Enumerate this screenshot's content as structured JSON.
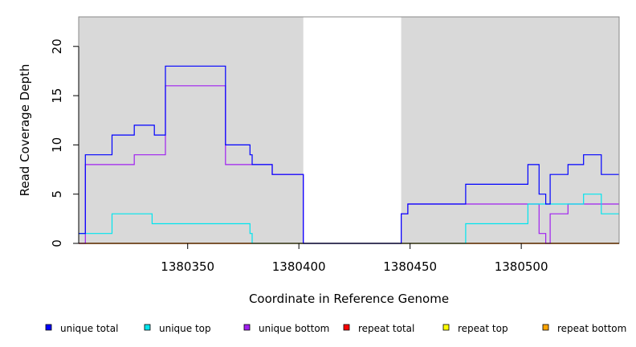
{
  "chart_data": {
    "type": "line",
    "xlabel": "Coordinate in Reference Genome",
    "ylabel": "Read Coverage Depth",
    "xlim": [
      1380301,
      1380544
    ],
    "ylim": [
      0,
      23
    ],
    "x_ticks": [
      1380350,
      1380400,
      1380450,
      1380500
    ],
    "y_ticks": [
      0,
      5,
      10,
      15,
      20
    ],
    "background_color": "#d9d9d9",
    "gap_regions": [
      [
        1380402,
        1380446
      ]
    ],
    "legend_placement": "bottom",
    "series": [
      {
        "name": "unique total",
        "color": "#0000ff",
        "points": [
          [
            1380301,
            1
          ],
          [
            1380304,
            9
          ],
          [
            1380316,
            11
          ],
          [
            1380326,
            12
          ],
          [
            1380335,
            11
          ],
          [
            1380340,
            18
          ],
          [
            1380367,
            10
          ],
          [
            1380378,
            9
          ],
          [
            1380379,
            8
          ],
          [
            1380388,
            7
          ],
          [
            1380402,
            0
          ],
          [
            1380446,
            3
          ],
          [
            1380449,
            4
          ],
          [
            1380475,
            6
          ],
          [
            1380503,
            8
          ],
          [
            1380508,
            5
          ],
          [
            1380511,
            4
          ],
          [
            1380513,
            7
          ],
          [
            1380521,
            8
          ],
          [
            1380528,
            9
          ],
          [
            1380536,
            7
          ],
          [
            1380544,
            7
          ]
        ]
      },
      {
        "name": "unique top",
        "color": "#00e5ee",
        "points": [
          [
            1380301,
            1
          ],
          [
            1380316,
            3
          ],
          [
            1380334,
            2
          ],
          [
            1380378,
            1
          ],
          [
            1380379,
            0
          ],
          [
            1380402,
            0
          ],
          [
            1380475,
            2
          ],
          [
            1380503,
            4
          ],
          [
            1380528,
            5
          ],
          [
            1380536,
            3
          ],
          [
            1380544,
            3
          ]
        ]
      },
      {
        "name": "unique bottom",
        "color": "#a020f0",
        "points": [
          [
            1380301,
            0
          ],
          [
            1380304,
            8
          ],
          [
            1380326,
            9
          ],
          [
            1380340,
            16
          ],
          [
            1380367,
            8
          ],
          [
            1380379,
            8
          ],
          [
            1380388,
            7
          ],
          [
            1380402,
            0
          ],
          [
            1380446,
            3
          ],
          [
            1380449,
            4
          ],
          [
            1380508,
            1
          ],
          [
            1380511,
            0
          ],
          [
            1380513,
            3
          ],
          [
            1380521,
            4
          ],
          [
            1380544,
            4
          ]
        ]
      },
      {
        "name": "repeat total",
        "color": "#ff0000",
        "points": [
          [
            1380301,
            0
          ],
          [
            1380544,
            0
          ]
        ]
      },
      {
        "name": "repeat top",
        "color": "#ffff00",
        "points": [
          [
            1380301,
            0
          ],
          [
            1380544,
            0
          ]
        ]
      },
      {
        "name": "repeat bottom",
        "color": "#ffa500",
        "points": [
          [
            1380301,
            0
          ],
          [
            1380544,
            0
          ]
        ]
      }
    ]
  }
}
